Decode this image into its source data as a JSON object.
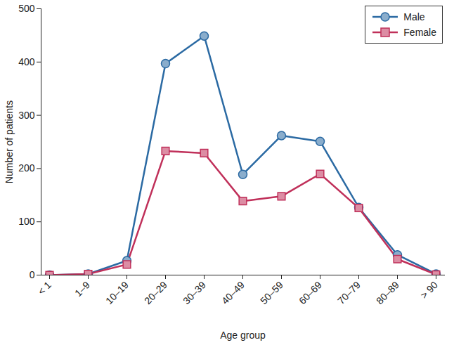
{
  "chart_data": {
    "type": "line",
    "x_label": "Age group",
    "y_label": "Number of patients",
    "categories": [
      "< 1",
      "1–9",
      "10–19",
      "20–29",
      "30–39",
      "40–49",
      "50–59",
      "60–69",
      "70–79",
      "80–89",
      "> 90"
    ],
    "series": [
      {
        "name": "Male",
        "color": "#2b6aa3",
        "marker": "circle",
        "values": [
          0,
          2,
          27,
          397,
          449,
          189,
          262,
          251,
          127,
          38,
          2
        ]
      },
      {
        "name": "Female",
        "color": "#c0305a",
        "marker": "square",
        "values": [
          0,
          2,
          20,
          233,
          229,
          139,
          148,
          190,
          126,
          30,
          1
        ]
      }
    ],
    "ylim": [
      0,
      500
    ],
    "yticks": [
      0,
      100,
      200,
      300,
      400,
      500
    ],
    "grid": false,
    "legend": "upper right"
  }
}
